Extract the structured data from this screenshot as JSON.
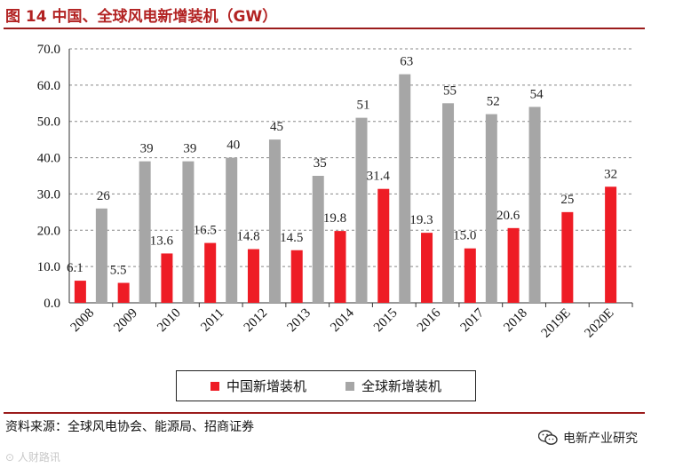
{
  "header": {
    "title": "图 14  中国、全球风电新增装机（GW）"
  },
  "footer": {
    "source": "资料来源：全球风电协会、能源局、招商证券",
    "wechat_label": "电新产业研究",
    "watermark_text": "人财路讯"
  },
  "colors": {
    "china": "#ee1c25",
    "global": "#a6a6a6",
    "accent": "#9b1c1c",
    "grid": "#888888"
  },
  "chart_data": {
    "type": "bar",
    "title": "",
    "xlabel": "",
    "ylabel": "",
    "categories": [
      "2008",
      "2009",
      "2010",
      "2011",
      "2012",
      "2013",
      "2014",
      "2015",
      "2016",
      "2017",
      "2018",
      "2019E",
      "2020E"
    ],
    "ylim": [
      0,
      70
    ],
    "yticks": [
      "0.0",
      "10.0",
      "20.0",
      "30.0",
      "40.0",
      "50.0",
      "60.0",
      "70.0"
    ],
    "grid": true,
    "legend_position": "bottom",
    "series": [
      {
        "name": "中国新增装机",
        "values": [
          6.1,
          5.5,
          13.6,
          16.5,
          14.8,
          14.5,
          19.8,
          31.4,
          19.3,
          15.0,
          20.6,
          25,
          32
        ],
        "labels": [
          "6.1",
          "5.5",
          "13.6",
          "16.5",
          "14.8",
          "14.5",
          "19.8",
          "31.4",
          "19.3",
          "15.0",
          "20.6",
          "25",
          "32"
        ]
      },
      {
        "name": "全球新增装机",
        "values": [
          26,
          39,
          39,
          40,
          45,
          35,
          51,
          63,
          55,
          52,
          54,
          null,
          null
        ],
        "labels": [
          "26",
          "39",
          "39",
          "40",
          "45",
          "35",
          "51",
          "63",
          "55",
          "52",
          "54",
          "",
          ""
        ]
      }
    ]
  }
}
